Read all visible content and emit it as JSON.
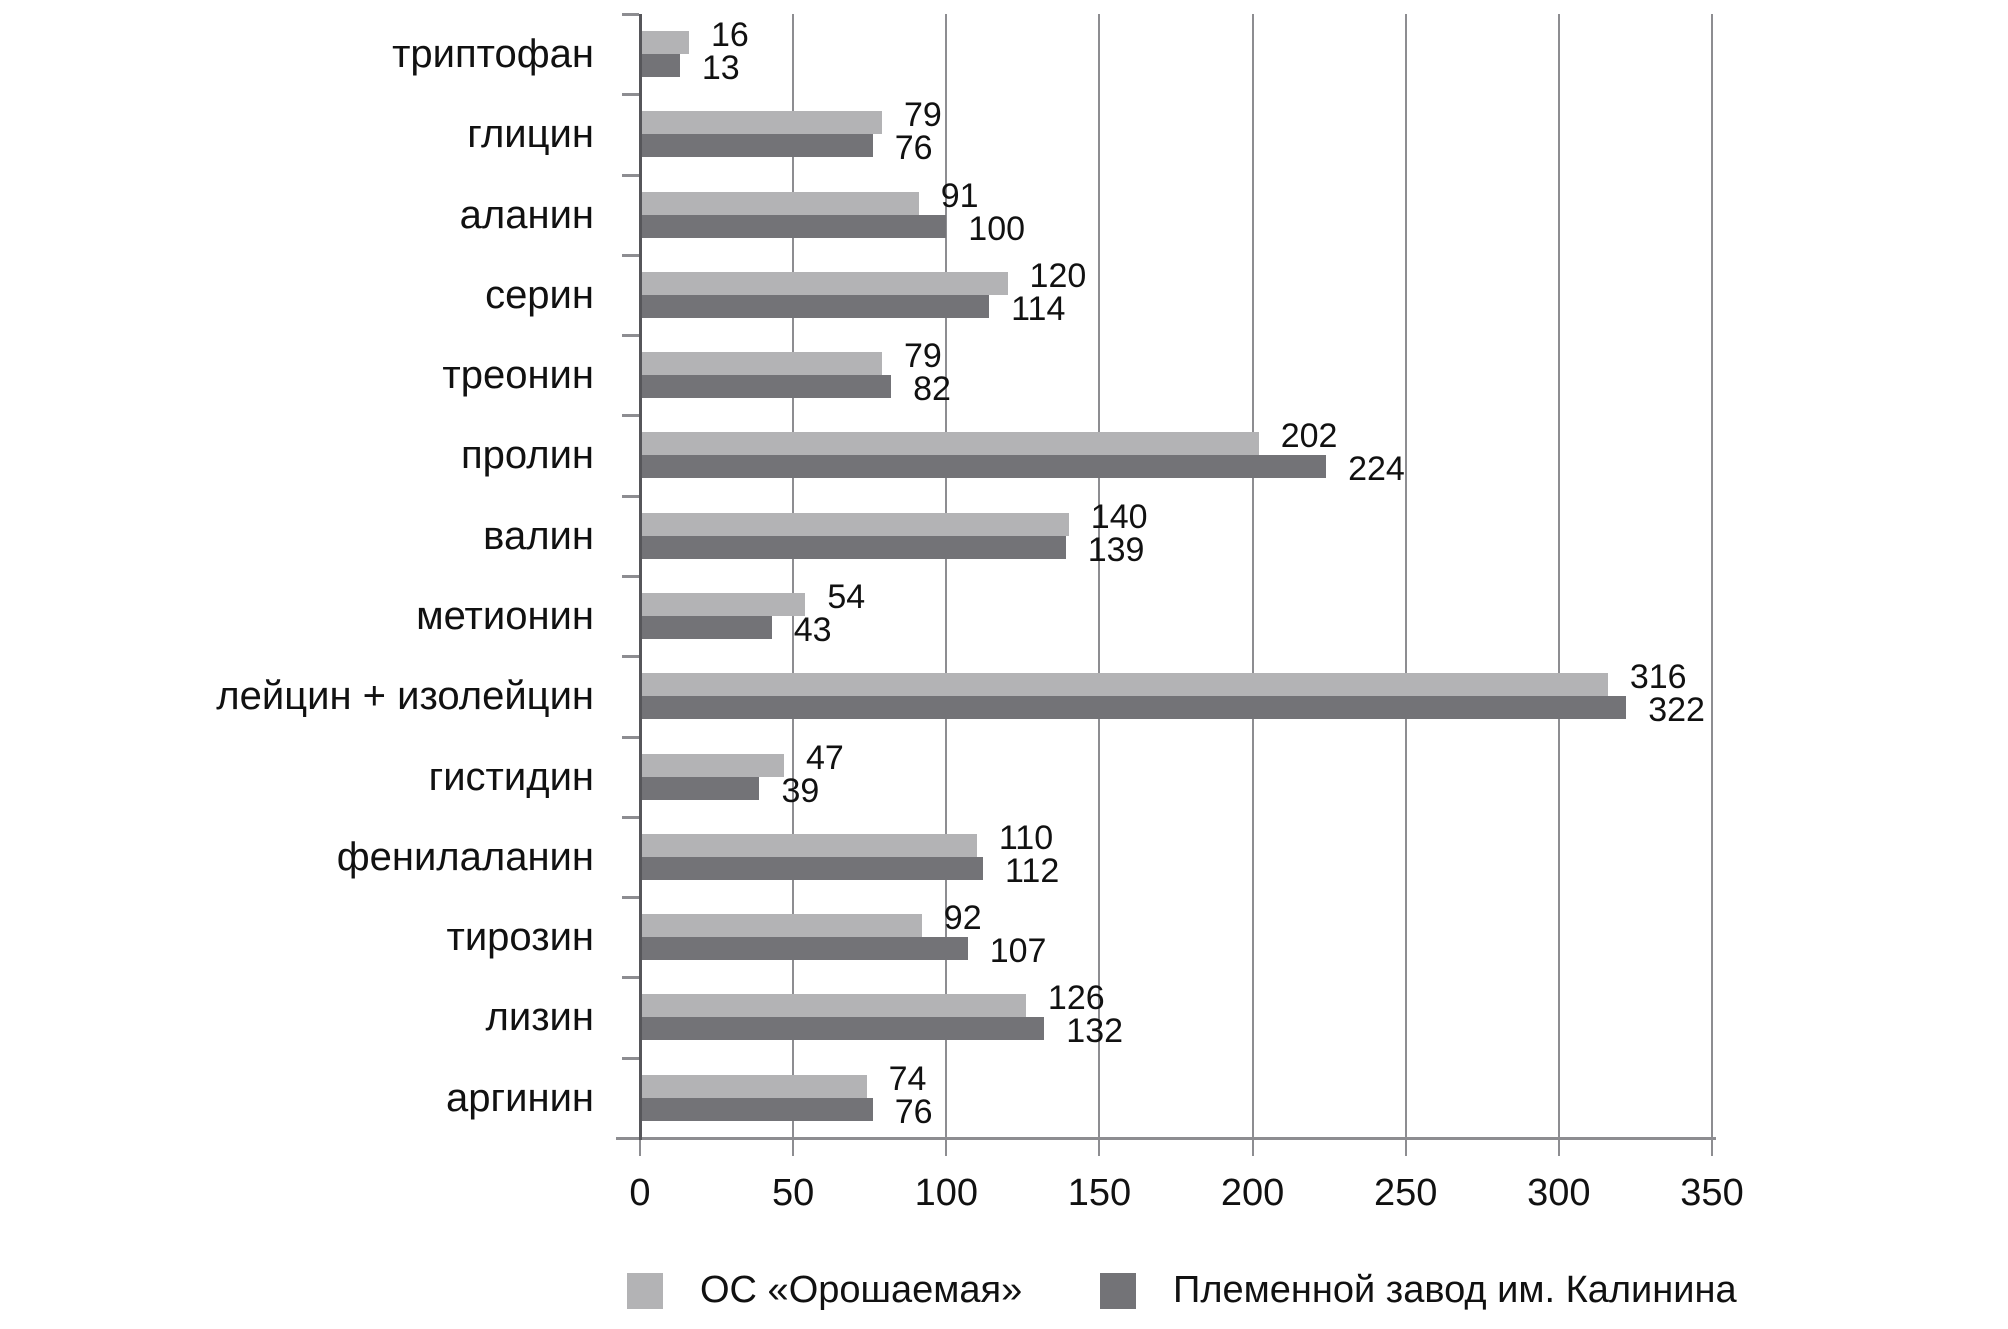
{
  "page": {
    "background": "#ffffff"
  },
  "chart_data": {
    "type": "bar",
    "orientation": "horizontal",
    "title": "",
    "categories": [
      "триптофан",
      "глицин",
      "аланин",
      "серин",
      "треонин",
      "пролин",
      "валин",
      "метионин",
      "лейцин + изолейцин",
      "гистидин",
      "фенилаланин",
      "тирозин",
      "лизин",
      "аргинин"
    ],
    "series": [
      {
        "name": "ОС «Орошаемая»",
        "color": "#b3b3b5",
        "values": [
          16,
          79,
          91,
          120,
          79,
          202,
          140,
          54,
          316,
          47,
          110,
          92,
          126,
          74
        ]
      },
      {
        "name": "Племенной завод им. Калинина",
        "color": "#737377",
        "values": [
          13,
          76,
          100,
          114,
          82,
          224,
          139,
          43,
          322,
          39,
          112,
          107,
          132,
          76
        ]
      }
    ],
    "value_labels_shown": true,
    "xlim": [
      0,
      350
    ],
    "xticks": [
      0,
      50,
      100,
      150,
      200,
      250,
      300,
      350
    ],
    "grid": "vertical gridlines at every x tick",
    "legend_position": "bottom",
    "axis_color": "#56565a",
    "grid_color": "#8d8d91",
    "text_color": "#111111"
  }
}
